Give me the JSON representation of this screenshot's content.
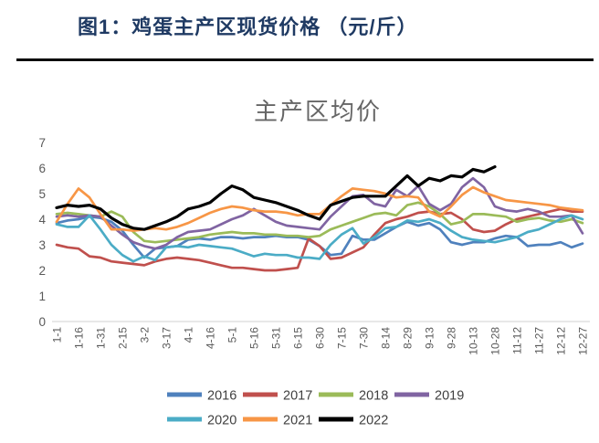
{
  "header": {
    "title": "图1：鸡蛋主产区现货价格 （元/斤）"
  },
  "chart_data": {
    "type": "line",
    "title": "主产区均价",
    "xlabel": "",
    "ylabel": "",
    "ylim": [
      0,
      7
    ],
    "y_ticks": [
      0,
      1,
      2,
      3,
      4,
      5,
      6,
      7
    ],
    "grid": false,
    "legend_position": "bottom",
    "axis_color": "#d9d9d9",
    "tick_label_color": "#595959",
    "legend_text_color": "#404040",
    "x_tick_labels": [
      "1-1",
      "1-16",
      "1-31",
      "2-15",
      "3-2",
      "3-17",
      "4-1",
      "4-16",
      "5-1",
      "5-16",
      "5-31",
      "6-15",
      "6-30",
      "7-15",
      "7-30",
      "8-14",
      "8-29",
      "9-13",
      "9-28",
      "10-13",
      "10-28",
      "11-12",
      "11-27",
      "12-12",
      "12-27"
    ],
    "x": [
      "1-1",
      "1-8",
      "1-16",
      "1-23",
      "1-31",
      "2-7",
      "2-15",
      "2-22",
      "3-2",
      "3-9",
      "3-17",
      "3-24",
      "4-1",
      "4-8",
      "4-16",
      "4-23",
      "5-1",
      "5-8",
      "5-16",
      "5-23",
      "5-31",
      "6-7",
      "6-15",
      "6-22",
      "6-30",
      "7-7",
      "7-15",
      "7-22",
      "7-30",
      "8-6",
      "8-14",
      "8-21",
      "8-29",
      "9-5",
      "9-13",
      "9-20",
      "9-28",
      "10-5",
      "10-13",
      "10-20",
      "10-28",
      "11-4",
      "11-12",
      "11-19",
      "11-27",
      "12-4",
      "12-12",
      "12-19",
      "12-27"
    ],
    "series": [
      {
        "name": "2016",
        "color": "#4F81BD",
        "values": [
          3.85,
          3.95,
          4.0,
          4.1,
          4.05,
          3.9,
          3.55,
          3.0,
          2.5,
          2.85,
          2.9,
          2.95,
          3.2,
          3.25,
          3.2,
          3.3,
          3.3,
          3.25,
          3.3,
          3.3,
          3.35,
          3.3,
          3.3,
          3.2,
          2.95,
          2.6,
          2.65,
          3.35,
          3.2,
          3.2,
          3.45,
          3.7,
          3.9,
          3.75,
          3.85,
          3.6,
          3.1,
          3.0,
          3.1,
          3.1,
          3.25,
          3.35,
          3.3,
          2.95,
          3.0,
          3.0,
          3.1,
          2.9,
          3.05
        ]
      },
      {
        "name": "2017",
        "color": "#C0504D",
        "values": [
          3.0,
          2.9,
          2.85,
          2.55,
          2.5,
          2.35,
          2.3,
          2.25,
          2.2,
          2.35,
          2.45,
          2.5,
          2.45,
          2.4,
          2.3,
          2.2,
          2.1,
          2.1,
          2.05,
          2.0,
          2.0,
          2.05,
          2.1,
          3.25,
          2.95,
          2.45,
          2.5,
          2.7,
          2.9,
          3.4,
          3.85,
          4.0,
          4.1,
          4.25,
          4.3,
          4.2,
          4.25,
          4.0,
          3.6,
          3.5,
          3.55,
          3.8,
          4.0,
          4.1,
          4.2,
          4.3,
          4.4,
          4.3,
          4.3
        ]
      },
      {
        "name": "2018",
        "color": "#9BBB59",
        "values": [
          4.2,
          4.25,
          4.2,
          4.15,
          4.1,
          4.3,
          4.1,
          3.5,
          3.15,
          3.1,
          3.15,
          3.2,
          3.25,
          3.3,
          3.4,
          3.45,
          3.5,
          3.45,
          3.45,
          3.4,
          3.4,
          3.35,
          3.35,
          3.3,
          3.35,
          3.6,
          3.75,
          3.9,
          4.05,
          4.2,
          4.25,
          4.15,
          4.55,
          4.65,
          4.5,
          4.2,
          3.8,
          3.9,
          4.2,
          4.2,
          4.15,
          4.1,
          3.9,
          4.0,
          4.05,
          3.95,
          3.9,
          4.0,
          3.85
        ]
      },
      {
        "name": "2019",
        "color": "#8064A2",
        "values": [
          4.1,
          4.15,
          4.1,
          4.15,
          4.1,
          3.75,
          3.4,
          3.1,
          2.95,
          2.85,
          3.0,
          3.3,
          3.5,
          3.55,
          3.6,
          3.8,
          4.0,
          4.15,
          4.4,
          4.15,
          3.9,
          3.75,
          3.7,
          3.65,
          3.6,
          4.1,
          4.5,
          4.9,
          4.95,
          4.6,
          4.5,
          5.15,
          4.9,
          5.3,
          4.6,
          4.35,
          4.6,
          5.25,
          5.6,
          5.25,
          4.5,
          4.35,
          4.3,
          4.4,
          4.3,
          4.1,
          4.1,
          4.15,
          3.45
        ]
      },
      {
        "name": "2020",
        "color": "#4BACC6",
        "values": [
          3.8,
          3.7,
          3.7,
          4.15,
          3.6,
          3.0,
          2.6,
          2.35,
          2.55,
          2.4,
          2.9,
          2.95,
          2.9,
          3.0,
          2.95,
          2.9,
          2.85,
          2.7,
          2.55,
          2.65,
          2.6,
          2.6,
          2.5,
          2.5,
          2.45,
          3.0,
          3.4,
          3.65,
          3.05,
          3.3,
          3.65,
          3.7,
          3.95,
          3.9,
          4.0,
          3.85,
          3.55,
          3.3,
          3.2,
          3.15,
          3.1,
          3.2,
          3.3,
          3.5,
          3.6,
          3.8,
          4.0,
          4.15,
          4.0
        ]
      },
      {
        "name": "2021",
        "color": "#F79646",
        "values": [
          3.9,
          4.6,
          5.2,
          4.85,
          4.2,
          3.6,
          3.6,
          3.55,
          3.6,
          3.65,
          3.6,
          3.7,
          3.85,
          4.05,
          4.25,
          4.4,
          4.5,
          4.45,
          4.35,
          4.3,
          4.3,
          4.25,
          4.15,
          4.2,
          4.2,
          4.55,
          4.9,
          5.2,
          5.15,
          5.1,
          5.0,
          4.85,
          4.9,
          4.85,
          4.3,
          4.1,
          4.5,
          4.95,
          5.25,
          5.05,
          4.9,
          4.75,
          4.7,
          4.65,
          4.6,
          4.55,
          4.45,
          4.4,
          4.35
        ]
      },
      {
        "name": "2022",
        "color": "#000000",
        "values": [
          4.45,
          4.55,
          4.5,
          4.55,
          4.4,
          4.05,
          3.8,
          3.65,
          3.6,
          3.75,
          3.9,
          4.1,
          4.4,
          4.5,
          4.65,
          5.0,
          5.3,
          5.15,
          4.85,
          4.75,
          4.65,
          4.5,
          4.35,
          4.15,
          4.0,
          4.55,
          4.7,
          4.85,
          4.9,
          4.9,
          4.9,
          5.3,
          5.7,
          5.3,
          5.6,
          5.5,
          5.7,
          5.65,
          5.95,
          5.85,
          6.05,
          null,
          null,
          null,
          null,
          null,
          null,
          null,
          null
        ]
      }
    ]
  }
}
